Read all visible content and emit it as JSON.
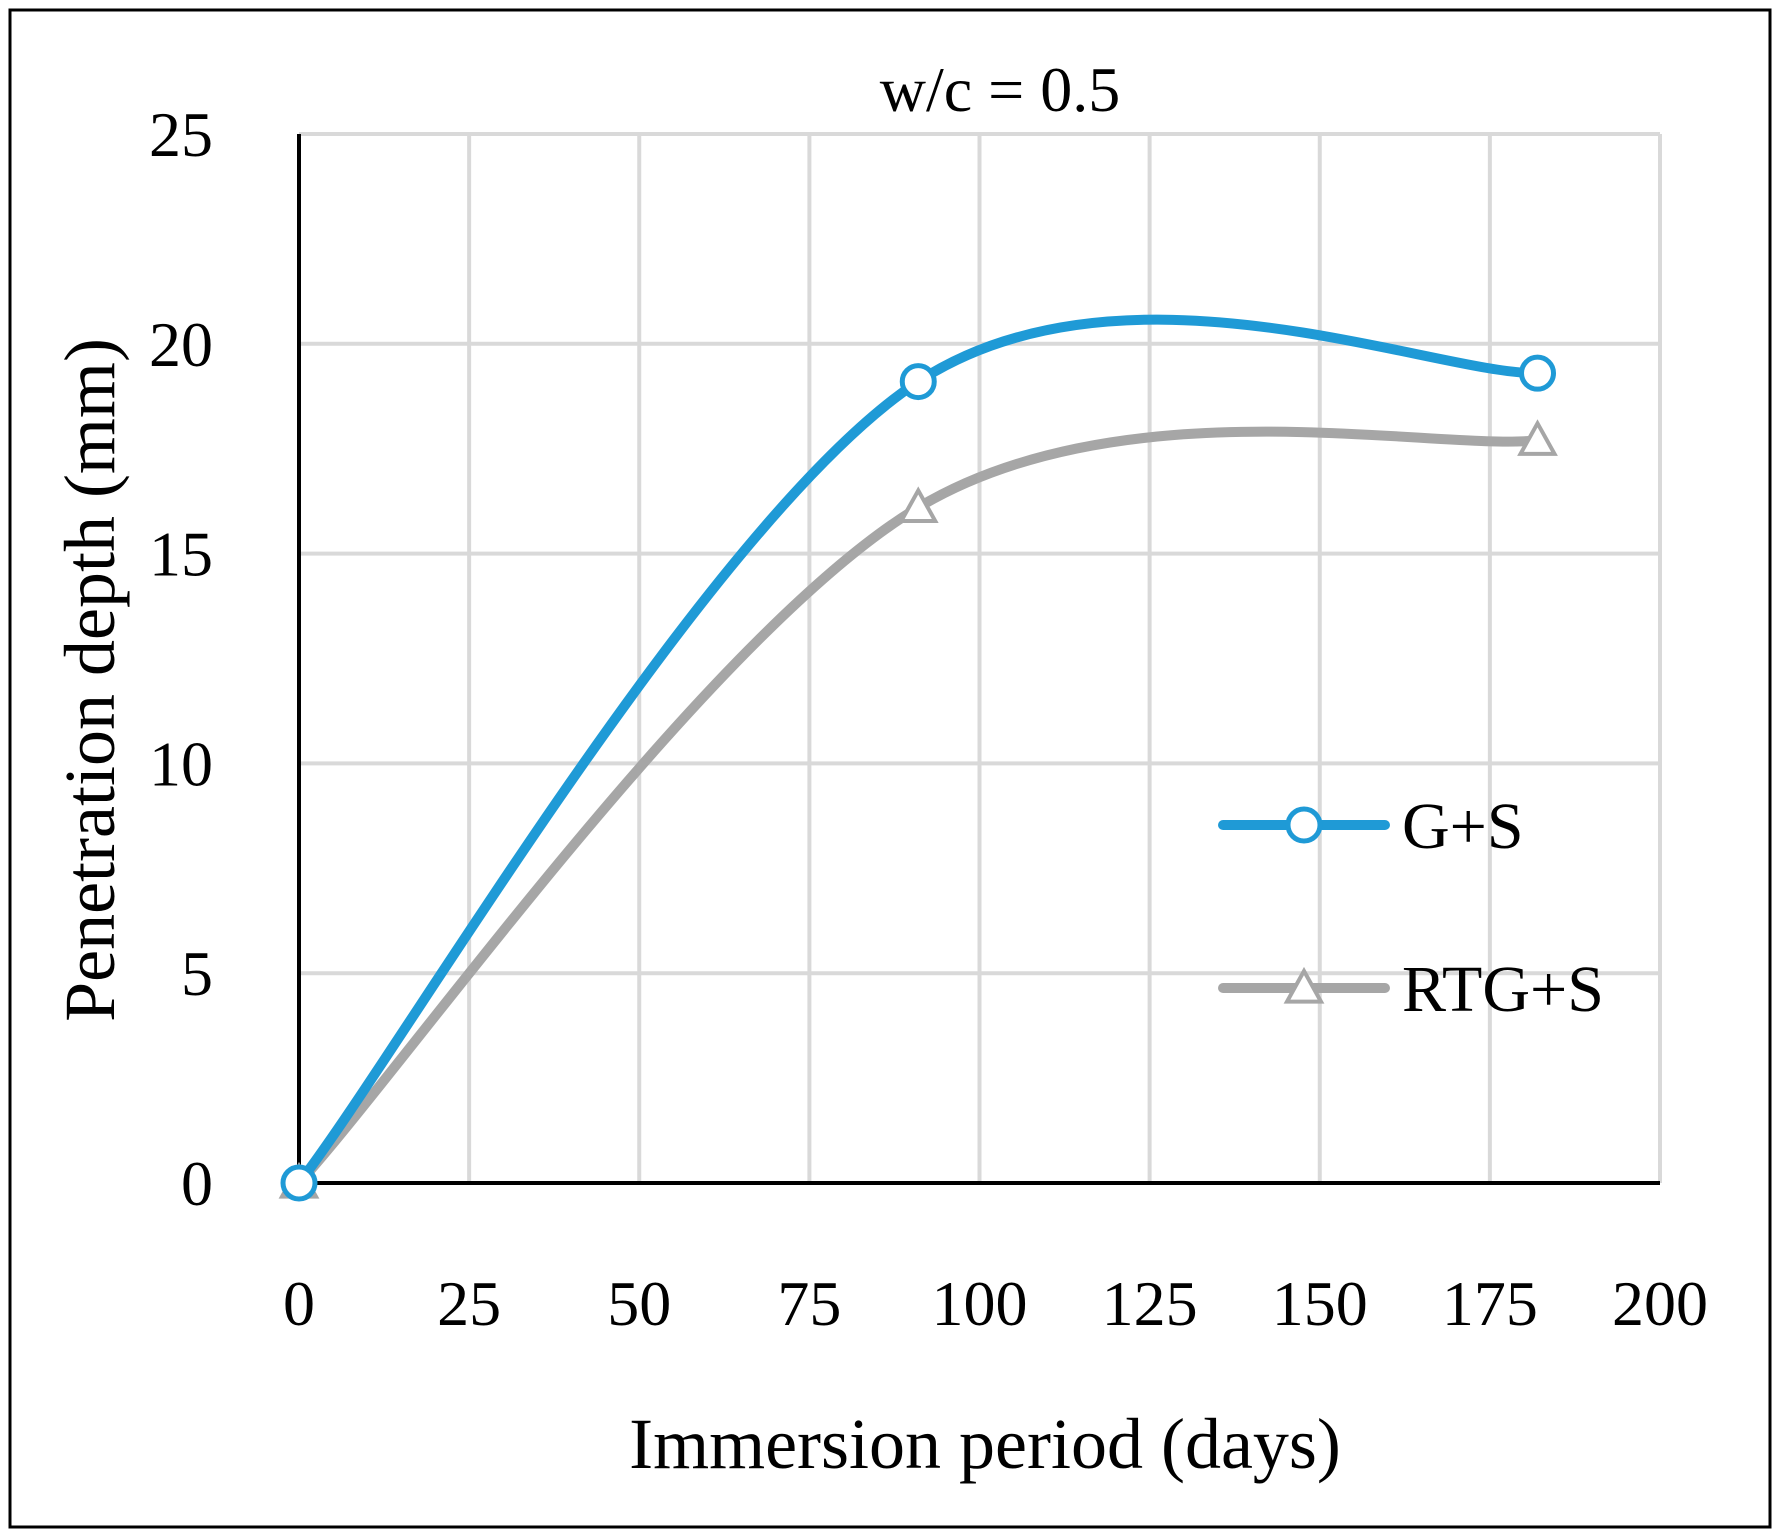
{
  "chart_data": {
    "type": "line",
    "title": "w/c = 0.5",
    "xlabel": "Immersion period (days)",
    "ylabel": "Penetration depth (mm)",
    "xlim": [
      0,
      200
    ],
    "ylim": [
      0,
      25
    ],
    "xticks": [
      0,
      25,
      50,
      75,
      100,
      125,
      150,
      175,
      200
    ],
    "yticks": [
      0,
      5,
      10,
      15,
      20,
      25
    ],
    "x": [
      0,
      91,
      182
    ],
    "grid": true,
    "smooth": true,
    "legend_position": "right",
    "series": [
      {
        "name": "G+S",
        "values": [
          0,
          19.1,
          19.3
        ],
        "color": "#1f9ad6",
        "marker": "circle"
      },
      {
        "name": "RTG+S",
        "values": [
          0,
          16.1,
          17.7
        ],
        "color": "#a6a6a6",
        "marker": "triangle"
      }
    ]
  }
}
